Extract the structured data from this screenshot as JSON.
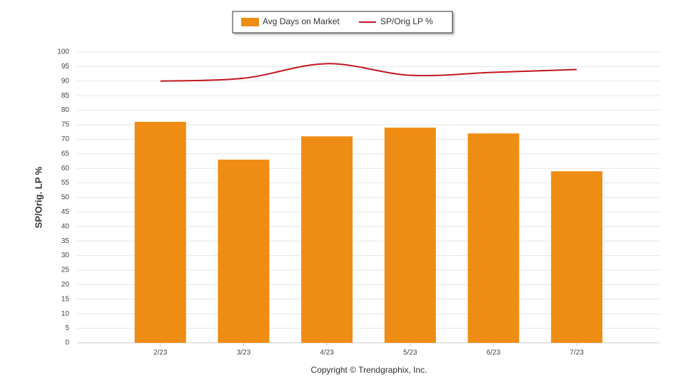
{
  "chart_data": {
    "type": "combo",
    "categories": [
      "2/23",
      "3/23",
      "4/23",
      "5/23",
      "6/23",
      "7/23"
    ],
    "series": [
      {
        "name": "Avg Days on Market",
        "type": "bar",
        "color": "#ef8c14",
        "values": [
          76,
          63,
          71,
          74,
          72,
          59
        ]
      },
      {
        "name": "SP/Orig LP %",
        "type": "line",
        "color": "#c0181f",
        "values": [
          90,
          91,
          96,
          92,
          93,
          94
        ]
      }
    ],
    "y_label": "SP/Orig. LP %",
    "ylim": [
      0,
      100
    ],
    "yticks": [
      0,
      5,
      10,
      15,
      20,
      25,
      30,
      35,
      40,
      45,
      50,
      55,
      60,
      65,
      70,
      75,
      80,
      85,
      90,
      95,
      100
    ],
    "grid": true,
    "legend": "top",
    "footer": "Copyright © Trendgraphix, Inc."
  }
}
